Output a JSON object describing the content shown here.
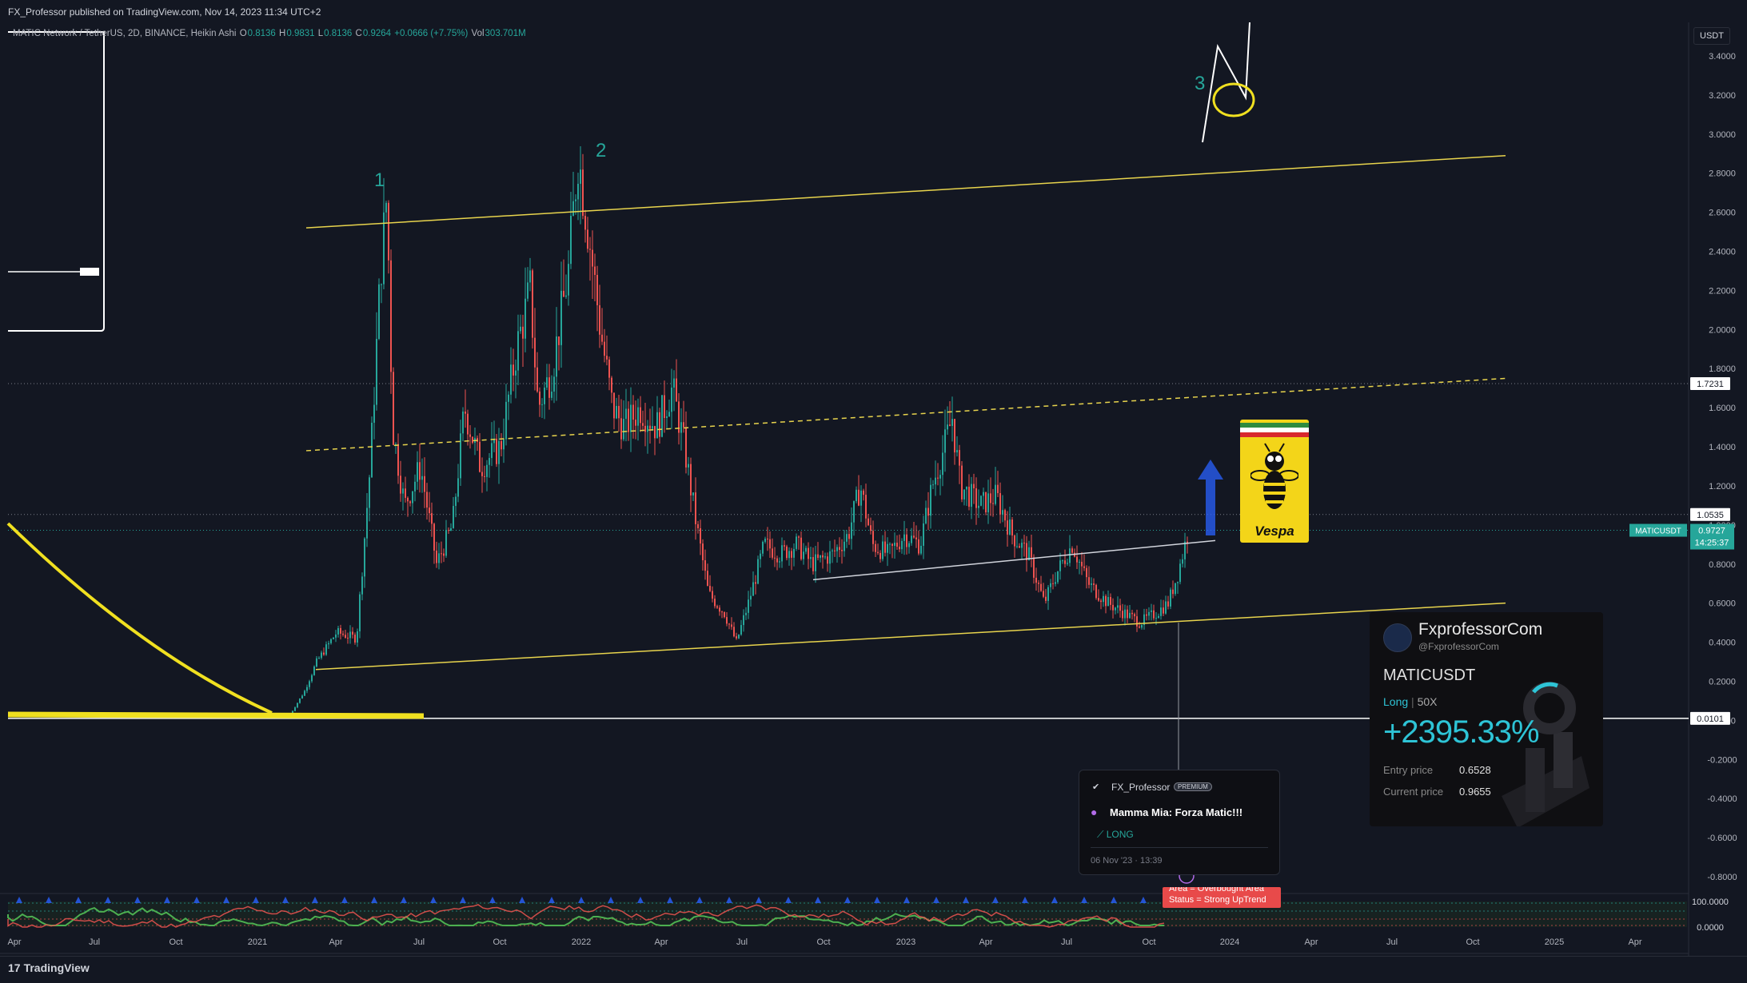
{
  "header": {
    "published": "FX_Professor published on TradingView.com, Nov 14, 2023 11:34 UTC+2",
    "symbol_desc": "MATIC Network / TetherUS, 2D, BINANCE, Heikin Ashi",
    "ohlc": {
      "O": "0.8136",
      "H": "0.9831",
      "L": "0.8136",
      "C": "0.9264",
      "change": "+0.0666 (+7.75%)",
      "vol": "303.701M"
    },
    "labels": {
      "O": "O",
      "H": "H",
      "L": "L",
      "C": "C",
      "vol": "Vol"
    }
  },
  "currency": "USDT",
  "footer": {
    "logo": "TradingView"
  },
  "chart_data": {
    "type": "candlestick",
    "y_axis": {
      "min": -0.8,
      "max": 3.4,
      "ticks": [
        "3.4000",
        "3.2000",
        "3.0000",
        "2.8000",
        "2.6000",
        "2.4000",
        "2.2000",
        "2.0000",
        "1.8000",
        "1.6000",
        "1.4000",
        "1.2000",
        "1.0000",
        "0.8000",
        "0.6000",
        "0.4000",
        "0.2000",
        "0.0000",
        "-0.2000",
        "-0.4000",
        "-0.6000",
        "-0.8000"
      ]
    },
    "x_axis": {
      "ticks": [
        "Apr",
        "Jul",
        "Oct",
        "2021",
        "Apr",
        "Jul",
        "Oct",
        "2022",
        "Apr",
        "Jul",
        "Oct",
        "2023",
        "Apr",
        "Jul",
        "Oct",
        "2024",
        "Apr",
        "Jul",
        "Oct",
        "2025",
        "Apr"
      ]
    },
    "price_labels": [
      {
        "value": 1.7231,
        "text": "1.7231"
      },
      {
        "value": 1.0535,
        "text": "1.0535"
      },
      {
        "value": 0.0101,
        "text": "0.0101"
      }
    ],
    "current_price": {
      "symbol": "MATICUSDT",
      "value": 0.9727,
      "text": "0.9727",
      "countdown": "14:25:37"
    },
    "wave_labels": [
      "1",
      "2",
      "3"
    ],
    "approx_series": {
      "dates": [
        "2021-01",
        "2021-03",
        "2021-05",
        "2021-06",
        "2021-08",
        "2021-10",
        "2021-12",
        "2022-01",
        "2022-03",
        "2022-05",
        "2022-06",
        "2022-08",
        "2022-10",
        "2022-12",
        "2023-02",
        "2023-04",
        "2023-06",
        "2023-08",
        "2023-10",
        "2023-11"
      ],
      "close": [
        0.02,
        0.35,
        2.3,
        1.1,
        1.2,
        1.7,
        2.6,
        2.1,
        1.4,
        0.6,
        0.42,
        0.9,
        0.8,
        0.77,
        1.4,
        1.1,
        0.7,
        0.75,
        0.52,
        0.97
      ]
    },
    "indicator": {
      "ticks": [
        "100.0000",
        "0.0000"
      ],
      "status_line1": "Area = Overbought Area",
      "status_line2": "Status = Strong UpTrend"
    }
  },
  "pnl_card": {
    "brand": "FxprofessorCom",
    "handle": "@FxprofessorCom",
    "symbol": "MATICUSDT",
    "side": "Long",
    "leverage": "50X",
    "roi": "+2395.33%",
    "entry_label": "Entry price",
    "entry_value": "0.6528",
    "current_label": "Current price",
    "current_value": "0.9655"
  },
  "idea_card": {
    "author": "FX_Professor",
    "badge": "PREMIUM",
    "title": "Mamma Mia: Forza Matic!!!",
    "direction": "LONG",
    "date": "06 Nov '23 · 13:39"
  },
  "sticker": {
    "text": "Vespa"
  },
  "colors": {
    "background": "#131722",
    "up": "#26a69a",
    "down": "#ef5350",
    "trendline": "#e8d44d",
    "accent": "#2ec4d6"
  }
}
